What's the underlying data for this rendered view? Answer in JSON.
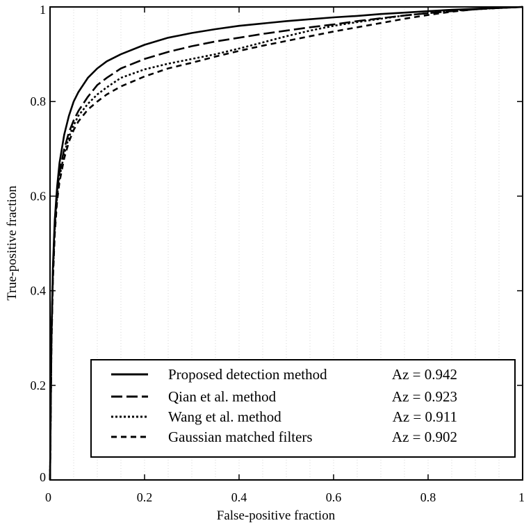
{
  "chart_data": {
    "type": "line",
    "xlabel": "False-positive fraction",
    "ylabel": "True-positive fraction",
    "xlim": [
      0,
      1
    ],
    "ylim": [
      0,
      1
    ],
    "xticks": [
      0,
      0.2,
      0.4,
      0.6,
      0.8,
      1
    ],
    "yticks": [
      0,
      0.2,
      0.4,
      0.6,
      0.8,
      1
    ],
    "xtick_labels": [
      "0",
      "0.2",
      "0.4",
      "0.6",
      "0.8",
      "1"
    ],
    "ytick_labels": [
      "0",
      "0.2",
      "0.4",
      "0.6",
      "0.8",
      "1"
    ],
    "grid": "vertical dotted",
    "legend_position": "bottom-right",
    "series": [
      {
        "name": "Proposed detection method",
        "az": "Az = 0.942",
        "style": "solid",
        "color": "#000000",
        "x": [
          0,
          0.003,
          0.006,
          0.01,
          0.015,
          0.02,
          0.03,
          0.04,
          0.05,
          0.06,
          0.08,
          0.1,
          0.12,
          0.15,
          0.2,
          0.25,
          0.3,
          0.35,
          0.4,
          0.45,
          0.5,
          0.55,
          0.6,
          0.65,
          0.7,
          0.75,
          0.8,
          0.85,
          0.9,
          0.95,
          1
        ],
        "y": [
          0,
          0.3,
          0.45,
          0.55,
          0.62,
          0.67,
          0.73,
          0.77,
          0.8,
          0.82,
          0.85,
          0.87,
          0.885,
          0.9,
          0.92,
          0.935,
          0.945,
          0.953,
          0.96,
          0.965,
          0.97,
          0.974,
          0.978,
          0.981,
          0.985,
          0.988,
          0.991,
          0.994,
          0.996,
          0.998,
          1
        ]
      },
      {
        "name": "Qian et al. method",
        "az": "Az = 0.923",
        "style": "longdash",
        "color": "#000000",
        "x": [
          0,
          0.003,
          0.006,
          0.01,
          0.015,
          0.02,
          0.03,
          0.04,
          0.05,
          0.06,
          0.08,
          0.1,
          0.12,
          0.15,
          0.2,
          0.25,
          0.3,
          0.35,
          0.4,
          0.45,
          0.5,
          0.55,
          0.6,
          0.65,
          0.7,
          0.75,
          0.8,
          0.85,
          0.9,
          0.95,
          1
        ],
        "y": [
          0,
          0.3,
          0.44,
          0.54,
          0.61,
          0.65,
          0.7,
          0.735,
          0.76,
          0.78,
          0.81,
          0.835,
          0.85,
          0.87,
          0.89,
          0.905,
          0.917,
          0.927,
          0.935,
          0.943,
          0.95,
          0.957,
          0.963,
          0.97,
          0.976,
          0.982,
          0.987,
          0.991,
          0.995,
          0.998,
          1
        ]
      },
      {
        "name": "Wang et al. method",
        "az": "Az = 0.911",
        "style": "dotted",
        "color": "#000000",
        "x": [
          0,
          0.003,
          0.006,
          0.01,
          0.015,
          0.02,
          0.03,
          0.04,
          0.05,
          0.06,
          0.08,
          0.1,
          0.12,
          0.15,
          0.2,
          0.25,
          0.3,
          0.35,
          0.4,
          0.45,
          0.5,
          0.55,
          0.6,
          0.65,
          0.7,
          0.75,
          0.8,
          0.85,
          0.9,
          0.95,
          1
        ],
        "y": [
          0,
          0.29,
          0.43,
          0.53,
          0.6,
          0.64,
          0.69,
          0.725,
          0.75,
          0.77,
          0.795,
          0.815,
          0.83,
          0.85,
          0.868,
          0.88,
          0.89,
          0.9,
          0.912,
          0.925,
          0.938,
          0.95,
          0.96,
          0.968,
          0.975,
          0.982,
          0.987,
          0.992,
          0.995,
          0.998,
          1
        ]
      },
      {
        "name": "Gaussian matched filters",
        "az": "Az = 0.902",
        "style": "shortdash",
        "color": "#000000",
        "x": [
          0,
          0.003,
          0.006,
          0.01,
          0.015,
          0.02,
          0.03,
          0.04,
          0.05,
          0.06,
          0.08,
          0.1,
          0.12,
          0.15,
          0.2,
          0.25,
          0.3,
          0.35,
          0.4,
          0.45,
          0.5,
          0.55,
          0.6,
          0.65,
          0.7,
          0.75,
          0.8,
          0.85,
          0.9,
          0.95,
          1
        ],
        "y": [
          0,
          0.28,
          0.42,
          0.52,
          0.59,
          0.63,
          0.68,
          0.715,
          0.74,
          0.758,
          0.783,
          0.8,
          0.815,
          0.832,
          0.853,
          0.87,
          0.882,
          0.895,
          0.907,
          0.918,
          0.928,
          0.938,
          0.948,
          0.957,
          0.966,
          0.975,
          0.983,
          0.99,
          0.995,
          0.998,
          1
        ]
      }
    ]
  }
}
